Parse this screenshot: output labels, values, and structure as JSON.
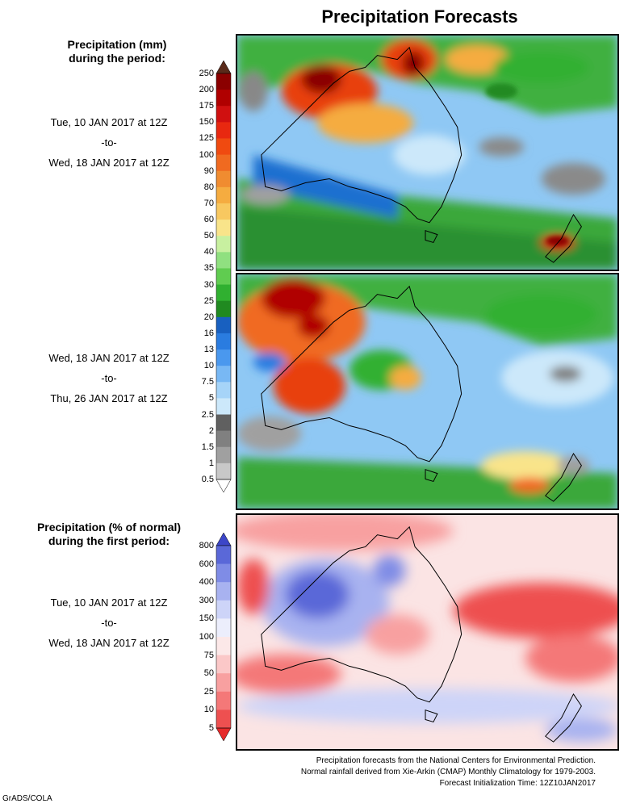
{
  "title": "Precipitation Forecasts",
  "precip_header": [
    "Precipitation (mm)",
    "during the period:"
  ],
  "period1": {
    "start": "Tue, 10 JAN 2017 at 12Z",
    "sep": "-to-",
    "end": "Wed, 18 JAN 2017 at 12Z"
  },
  "period2": {
    "start": "Wed, 18 JAN 2017 at 12Z",
    "sep": "-to-",
    "end": "Thu, 26 JAN 2017 at 12Z"
  },
  "pct_header": [
    "Precipitation (% of normal)",
    "during the first period:"
  ],
  "period3": {
    "start": "Tue, 10 JAN 2017 at 12Z",
    "sep": "-to-",
    "end": "Wed, 18 JAN 2017 at 12Z"
  },
  "precip_scale": {
    "labels": [
      "250",
      "200",
      "175",
      "150",
      "125",
      "100",
      "90",
      "80",
      "70",
      "60",
      "50",
      "40",
      "35",
      "30",
      "25",
      "20",
      "16",
      "13",
      "10",
      "7.5",
      "5",
      "2.5",
      "2",
      "1.5",
      "1",
      "0.5"
    ],
    "colors": [
      "#5a2a1a",
      "#8b0000",
      "#b00000",
      "#d01010",
      "#e82810",
      "#f04a10",
      "#f06a20",
      "#f08c30",
      "#f5ac40",
      "#f8c860",
      "#f9e48a",
      "#c8f0a0",
      "#90e080",
      "#60cc50",
      "#30b030",
      "#208a20",
      "#1860c0",
      "#2a7ce0",
      "#4a98ee",
      "#78b8f4",
      "#a6d4f8",
      "#cce8fa",
      "#606060",
      "#808080",
      "#a0a0a0",
      "#c8c8c8",
      "#ffffff"
    ]
  },
  "pct_scale": {
    "labels": [
      "800",
      "600",
      "400",
      "300",
      "150",
      "100",
      "75",
      "50",
      "25",
      "10",
      "5"
    ],
    "colors": [
      "#3c46c8",
      "#5a68d8",
      "#7f8ce6",
      "#a8b2f0",
      "#cdd4f8",
      "#eceefc",
      "#fce8e8",
      "#fbc8c8",
      "#f8a0a0",
      "#f47878",
      "#ee5050",
      "#e62a2a"
    ]
  },
  "footer": [
    "Precipitation forecasts from the National Centers for Environmental Prediction.",
    "Normal rainfall derived from Xie-Arkin (CMAP) Monthly Climatology for 1979-2003.",
    "Forecast Initialization Time: 12Z10JAN2017"
  ],
  "credit": "GrADS/COLA"
}
